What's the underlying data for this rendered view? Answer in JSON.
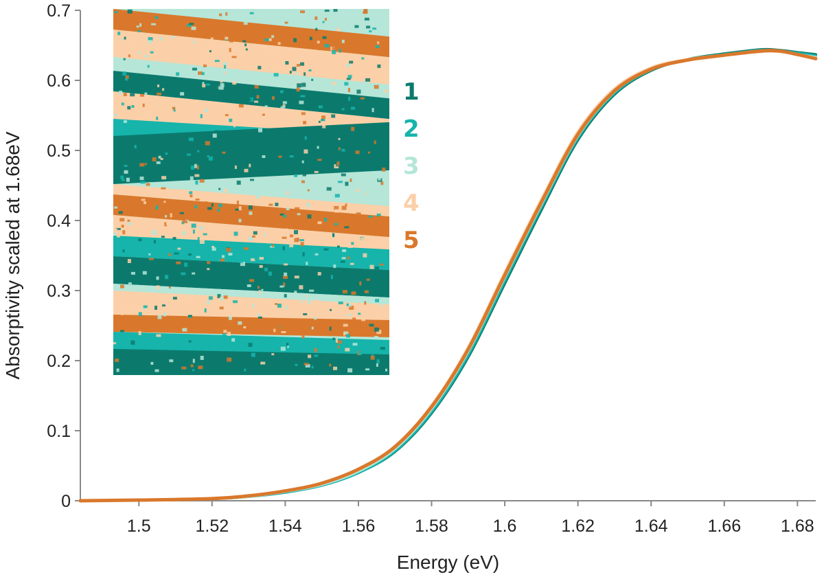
{
  "chart_data": {
    "type": "line",
    "title": "",
    "xlabel": "Energy (eV)",
    "ylabel": "Absorptivity scaled at 1.68eV",
    "xlim": [
      1.484,
      1.685
    ],
    "ylim": [
      0,
      0.7
    ],
    "xticks": [
      "1.5",
      "1.52",
      "1.54",
      "1.56",
      "1.58",
      "1.6",
      "1.62",
      "1.64",
      "1.66",
      "1.68"
    ],
    "yticks": [
      "0",
      "0.1",
      "0.2",
      "0.3",
      "0.4",
      "0.5",
      "0.6",
      "0.7"
    ],
    "grid": false,
    "legend_position": "inset-right",
    "colors": [
      "#0b7a6d",
      "#16b4ab",
      "#b5e6d8",
      "#fbd0a8",
      "#d9782c"
    ],
    "x": [
      1.484,
      1.5,
      1.52,
      1.53,
      1.54,
      1.55,
      1.56,
      1.57,
      1.58,
      1.59,
      1.6,
      1.61,
      1.62,
      1.63,
      1.64,
      1.65,
      1.66,
      1.67,
      1.675,
      1.68,
      1.685
    ],
    "series": [
      {
        "name": "1",
        "values": [
          0.0,
          0.001,
          0.003,
          0.006,
          0.012,
          0.022,
          0.04,
          0.07,
          0.125,
          0.205,
          0.31,
          0.415,
          0.515,
          0.58,
          0.614,
          0.63,
          0.638,
          0.644,
          0.643,
          0.64,
          0.637
        ]
      },
      {
        "name": "2",
        "values": [
          0.0,
          0.001,
          0.003,
          0.006,
          0.012,
          0.022,
          0.04,
          0.071,
          0.127,
          0.208,
          0.314,
          0.419,
          0.518,
          0.582,
          0.615,
          0.63,
          0.637,
          0.643,
          0.642,
          0.639,
          0.635
        ]
      },
      {
        "name": "3",
        "values": [
          0.0,
          0.001,
          0.003,
          0.006,
          0.013,
          0.023,
          0.042,
          0.074,
          0.131,
          0.213,
          0.319,
          0.423,
          0.521,
          0.584,
          0.616,
          0.629,
          0.636,
          0.641,
          0.641,
          0.637,
          0.633
        ]
      },
      {
        "name": "4",
        "values": [
          0.0,
          0.001,
          0.003,
          0.007,
          0.014,
          0.025,
          0.045,
          0.078,
          0.136,
          0.219,
          0.326,
          0.43,
          0.527,
          0.588,
          0.618,
          0.63,
          0.636,
          0.641,
          0.641,
          0.637,
          0.632
        ]
      },
      {
        "name": "5",
        "values": [
          0.0,
          0.001,
          0.003,
          0.007,
          0.014,
          0.025,
          0.045,
          0.077,
          0.134,
          0.216,
          0.322,
          0.426,
          0.523,
          0.585,
          0.616,
          0.629,
          0.636,
          0.642,
          0.642,
          0.637,
          0.631
        ]
      }
    ]
  },
  "inset_map": {
    "description": "false-color map of regions 1-5",
    "palette": [
      "#0b7a6d",
      "#16b4ab",
      "#b5e6d8",
      "#fbd0a8",
      "#d9782c"
    ]
  }
}
